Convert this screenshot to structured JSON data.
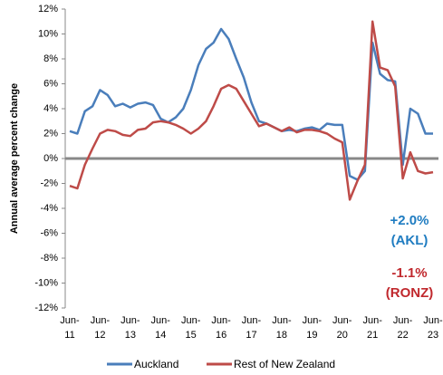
{
  "chart_data": {
    "type": "line",
    "y_label": "Annual average percent change",
    "categories": [
      "Jun-11",
      null,
      null,
      null,
      "Jun-12",
      null,
      null,
      null,
      "Jun-13",
      null,
      null,
      null,
      "Jun-14",
      null,
      null,
      null,
      "Jun-15",
      null,
      null,
      null,
      "Jun-16",
      null,
      null,
      null,
      "Jun-17",
      null,
      null,
      null,
      "Jun-18",
      null,
      null,
      null,
      "Jun-19",
      null,
      null,
      null,
      "Jun-20",
      null,
      null,
      null,
      "Jun-21",
      null,
      null,
      null,
      "Jun-22",
      null,
      null,
      null,
      "Jun-23"
    ],
    "series": [
      {
        "name": "Auckland",
        "color": "#4a7ebb",
        "values": [
          2.2,
          2.0,
          3.8,
          4.2,
          5.5,
          5.1,
          4.2,
          4.4,
          4.1,
          4.4,
          4.5,
          4.3,
          3.2,
          2.9,
          3.3,
          4.0,
          5.5,
          7.5,
          8.8,
          9.3,
          10.4,
          9.6,
          8.0,
          6.5,
          4.5,
          3.0,
          2.8,
          2.5,
          2.2,
          2.3,
          2.2,
          2.4,
          2.5,
          2.3,
          2.8,
          2.7,
          2.7,
          -1.4,
          -1.7,
          -1.0,
          9.3,
          6.8,
          6.3,
          6.2,
          -0.5,
          4.0,
          3.6,
          2.0,
          2.0
        ]
      },
      {
        "name": "Rest of New Zealand",
        "color": "#be4b48",
        "values": [
          -2.2,
          -2.4,
          -0.5,
          0.8,
          2.0,
          2.3,
          2.2,
          1.9,
          1.8,
          2.3,
          2.4,
          2.9,
          3.0,
          2.9,
          2.7,
          2.4,
          2.0,
          2.4,
          3.0,
          4.2,
          5.6,
          5.9,
          5.6,
          4.6,
          3.6,
          2.6,
          2.8,
          2.5,
          2.2,
          2.5,
          2.1,
          2.3,
          2.3,
          2.2,
          2.0,
          1.6,
          1.3,
          -3.3,
          -1.8,
          -0.5,
          11.0,
          7.3,
          7.1,
          5.8,
          -1.6,
          0.5,
          -1.0,
          -1.2,
          -1.1
        ]
      }
    ],
    "ylim": [
      -12,
      12
    ],
    "yticks": [
      {
        "value": -12,
        "label": "-12%"
      },
      {
        "value": -10,
        "label": "-10%"
      },
      {
        "value": -8,
        "label": "-8%"
      },
      {
        "value": -6,
        "label": "-6%"
      },
      {
        "value": -4,
        "label": "-4%"
      },
      {
        "value": -2,
        "label": "-2%"
      },
      {
        "value": 0,
        "label": "0%"
      },
      {
        "value": 2,
        "label": "2%"
      },
      {
        "value": 4,
        "label": "4%"
      },
      {
        "value": 6,
        "label": "6%"
      },
      {
        "value": 8,
        "label": "8%"
      },
      {
        "value": 10,
        "label": "10%"
      },
      {
        "value": 12,
        "label": "12%"
      }
    ],
    "annotations": [
      {
        "lines": [
          "+2.0%",
          "(AKL)"
        ],
        "color": "#1f7cc1"
      },
      {
        "lines": [
          "-1.1%",
          "(RONZ)"
        ],
        "color": "#c0282d"
      }
    ]
  }
}
